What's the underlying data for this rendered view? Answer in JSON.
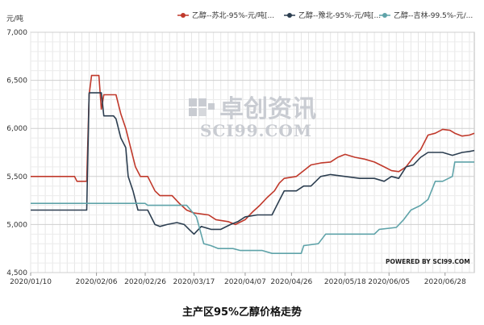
{
  "chart_data": {
    "type": "line",
    "title": "主产区95%乙醇价格走势",
    "ylabel": "元/吨",
    "ylim": [
      4500,
      7000
    ],
    "yticks": [
      "4,500",
      "5,000",
      "5,500",
      "6,000",
      "6,500",
      "7,000"
    ],
    "ytick_values": [
      4500,
      5000,
      5500,
      6000,
      6500,
      7000
    ],
    "x_range": [
      "2020/01/10",
      "2020/07/10"
    ],
    "x_ticks": [
      "2020/01/10",
      "2020/02/06",
      "2020/02/26",
      "2020/03/17",
      "2020/04/07",
      "2020/04/26",
      "2020/05/18",
      "2020/06/05",
      "2020/06/28"
    ],
    "grid": true,
    "legend_position": "top-right",
    "series": [
      {
        "name": "乙醇--苏北-95%-元/吨[...",
        "color": "#c0392b",
        "points": [
          [
            "2020/01/10",
            5500
          ],
          [
            "2020/01/28",
            5500
          ],
          [
            "2020/01/29",
            5450
          ],
          [
            "2020/02/02",
            5450
          ],
          [
            "2020/02/03",
            6350
          ],
          [
            "2020/02/04",
            6550
          ],
          [
            "2020/02/07",
            6550
          ],
          [
            "2020/02/08",
            6200
          ],
          [
            "2020/02/09",
            6350
          ],
          [
            "2020/02/14",
            6350
          ],
          [
            "2020/02/16",
            6150
          ],
          [
            "2020/02/18",
            6000
          ],
          [
            "2020/02/20",
            5800
          ],
          [
            "2020/02/22",
            5600
          ],
          [
            "2020/02/24",
            5500
          ],
          [
            "2020/02/27",
            5500
          ],
          [
            "2020/03/01",
            5350
          ],
          [
            "2020/03/03",
            5300
          ],
          [
            "2020/03/08",
            5300
          ],
          [
            "2020/03/11",
            5220
          ],
          [
            "2020/03/14",
            5150
          ],
          [
            "2020/03/17",
            5120
          ],
          [
            "2020/03/23",
            5100
          ],
          [
            "2020/03/26",
            5050
          ],
          [
            "2020/03/31",
            5030
          ],
          [
            "2020/04/03",
            5000
          ],
          [
            "2020/04/07",
            5050
          ],
          [
            "2020/04/10",
            5130
          ],
          [
            "2020/04/13",
            5200
          ],
          [
            "2020/04/16",
            5280
          ],
          [
            "2020/04/19",
            5350
          ],
          [
            "2020/04/21",
            5430
          ],
          [
            "2020/04/23",
            5480
          ],
          [
            "2020/04/28",
            5500
          ],
          [
            "2020/05/01",
            5560
          ],
          [
            "2020/05/04",
            5620
          ],
          [
            "2020/05/08",
            5640
          ],
          [
            "2020/05/12",
            5650
          ],
          [
            "2020/05/15",
            5700
          ],
          [
            "2020/05/18",
            5730
          ],
          [
            "2020/05/22",
            5700
          ],
          [
            "2020/05/26",
            5680
          ],
          [
            "2020/05/30",
            5650
          ],
          [
            "2020/06/03",
            5600
          ],
          [
            "2020/06/06",
            5560
          ],
          [
            "2020/06/09",
            5550
          ],
          [
            "2020/06/12",
            5600
          ],
          [
            "2020/06/15",
            5700
          ],
          [
            "2020/06/18",
            5780
          ],
          [
            "2020/06/21",
            5930
          ],
          [
            "2020/06/24",
            5950
          ],
          [
            "2020/06/27",
            5990
          ],
          [
            "2020/06/30",
            5980
          ],
          [
            "2020/07/02",
            5950
          ],
          [
            "2020/07/05",
            5920
          ],
          [
            "2020/07/08",
            5930
          ],
          [
            "2020/07/10",
            5950
          ]
        ]
      },
      {
        "name": "乙醇--豫北-95%-元/吨[...",
        "color": "#2c3e50",
        "points": [
          [
            "2020/01/10",
            5150
          ],
          [
            "2020/01/28",
            5150
          ],
          [
            "2020/02/01",
            5150
          ],
          [
            "2020/02/02",
            5150
          ],
          [
            "2020/02/03",
            6370
          ],
          [
            "2020/02/08",
            6370
          ],
          [
            "2020/02/09",
            6130
          ],
          [
            "2020/02/13",
            6130
          ],
          [
            "2020/02/14",
            6100
          ],
          [
            "2020/02/16",
            5900
          ],
          [
            "2020/02/18",
            5800
          ],
          [
            "2020/02/19",
            5500
          ],
          [
            "2020/02/21",
            5350
          ],
          [
            "2020/02/23",
            5150
          ],
          [
            "2020/02/27",
            5150
          ],
          [
            "2020/03/01",
            5000
          ],
          [
            "2020/03/03",
            4980
          ],
          [
            "2020/03/06",
            5000
          ],
          [
            "2020/03/10",
            5020
          ],
          [
            "2020/03/13",
            5000
          ],
          [
            "2020/03/15",
            4950
          ],
          [
            "2020/03/17",
            4900
          ],
          [
            "2020/03/20",
            4980
          ],
          [
            "2020/03/24",
            4950
          ],
          [
            "2020/03/28",
            4950
          ],
          [
            "2020/04/01",
            5000
          ],
          [
            "2020/04/04",
            5030
          ],
          [
            "2020/04/07",
            5080
          ],
          [
            "2020/04/12",
            5100
          ],
          [
            "2020/04/18",
            5100
          ],
          [
            "2020/04/21",
            5250
          ],
          [
            "2020/04/23",
            5350
          ],
          [
            "2020/04/28",
            5350
          ],
          [
            "2020/05/01",
            5400
          ],
          [
            "2020/05/04",
            5400
          ],
          [
            "2020/05/08",
            5500
          ],
          [
            "2020/05/12",
            5520
          ],
          [
            "2020/05/18",
            5500
          ],
          [
            "2020/05/24",
            5480
          ],
          [
            "2020/05/30",
            5480
          ],
          [
            "2020/06/03",
            5450
          ],
          [
            "2020/06/06",
            5500
          ],
          [
            "2020/06/09",
            5480
          ],
          [
            "2020/06/12",
            5600
          ],
          [
            "2020/06/15",
            5620
          ],
          [
            "2020/06/18",
            5700
          ],
          [
            "2020/06/21",
            5750
          ],
          [
            "2020/06/27",
            5750
          ],
          [
            "2020/07/01",
            5720
          ],
          [
            "2020/07/05",
            5750
          ],
          [
            "2020/07/08",
            5760
          ],
          [
            "2020/07/10",
            5770
          ]
        ]
      },
      {
        "name": "乙醇--吉林-99.5%-元/...",
        "color": "#5fa3a9",
        "points": [
          [
            "2020/01/10",
            5220
          ],
          [
            "2020/02/06",
            5220
          ],
          [
            "2020/02/26",
            5220
          ],
          [
            "2020/02/27",
            5200
          ],
          [
            "2020/03/14",
            5200
          ],
          [
            "2020/03/18",
            5080
          ],
          [
            "2020/03/21",
            4800
          ],
          [
            "2020/03/24",
            4780
          ],
          [
            "2020/03/27",
            4750
          ],
          [
            "2020/04/02",
            4750
          ],
          [
            "2020/04/05",
            4730
          ],
          [
            "2020/04/14",
            4730
          ],
          [
            "2020/04/18",
            4700
          ],
          [
            "2020/04/30",
            4700
          ],
          [
            "2020/05/01",
            4780
          ],
          [
            "2020/05/07",
            4800
          ],
          [
            "2020/05/10",
            4900
          ],
          [
            "2020/05/30",
            4900
          ],
          [
            "2020/06/01",
            4950
          ],
          [
            "2020/06/08",
            4970
          ],
          [
            "2020/06/11",
            5050
          ],
          [
            "2020/06/14",
            5150
          ],
          [
            "2020/06/18",
            5200
          ],
          [
            "2020/06/21",
            5260
          ],
          [
            "2020/06/24",
            5450
          ],
          [
            "2020/06/27",
            5450
          ],
          [
            "2020/07/01",
            5500
          ],
          [
            "2020/07/02",
            5650
          ],
          [
            "2020/07/10",
            5650
          ]
        ]
      }
    ]
  },
  "watermark": {
    "cn": "卓创资讯",
    "en": "SCI99.COM",
    "powered": "POWERED BY SCI99.COM"
  }
}
